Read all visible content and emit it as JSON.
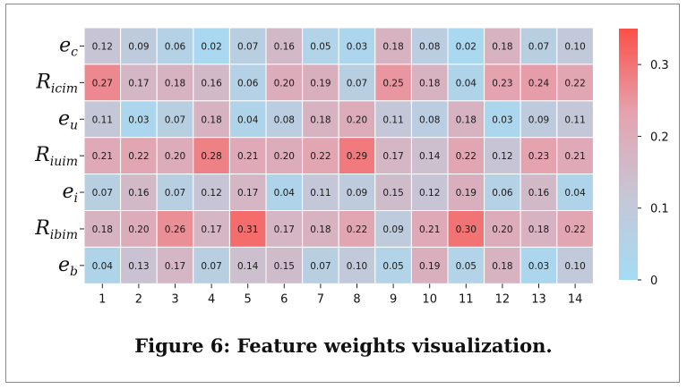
{
  "caption": "Figure 6: Feature weights visualization.",
  "chart_data": {
    "type": "heatmap",
    "title": "",
    "xlabel": "",
    "ylabel": "",
    "columns": [
      "1",
      "2",
      "3",
      "4",
      "5",
      "6",
      "7",
      "8",
      "9",
      "10",
      "11",
      "12",
      "13",
      "14"
    ],
    "rows": [
      {
        "main": "e",
        "sub": "c"
      },
      {
        "main": "R",
        "sub": "icim"
      },
      {
        "main": "e",
        "sub": "u"
      },
      {
        "main": "R",
        "sub": "iuim"
      },
      {
        "main": "e",
        "sub": "i"
      },
      {
        "main": "R",
        "sub": "ibim"
      },
      {
        "main": "e",
        "sub": "b"
      }
    ],
    "values": [
      [
        0.12,
        0.09,
        0.06,
        0.02,
        0.07,
        0.16,
        0.05,
        0.03,
        0.18,
        0.08,
        0.02,
        0.18,
        0.07,
        0.1
      ],
      [
        0.27,
        0.17,
        0.18,
        0.16,
        0.06,
        0.2,
        0.19,
        0.07,
        0.25,
        0.18,
        0.04,
        0.23,
        0.24,
        0.22
      ],
      [
        0.11,
        0.03,
        0.07,
        0.18,
        0.04,
        0.08,
        0.18,
        0.2,
        0.11,
        0.08,
        0.18,
        0.03,
        0.09,
        0.11
      ],
      [
        0.21,
        0.22,
        0.2,
        0.28,
        0.21,
        0.2,
        0.22,
        0.29,
        0.17,
        0.14,
        0.22,
        0.12,
        0.23,
        0.21
      ],
      [
        0.07,
        0.16,
        0.07,
        0.12,
        0.17,
        0.04,
        0.11,
        0.09,
        0.15,
        0.12,
        0.19,
        0.06,
        0.16,
        0.04
      ],
      [
        0.18,
        0.2,
        0.26,
        0.17,
        0.31,
        0.17,
        0.18,
        0.22,
        0.09,
        0.21,
        0.3,
        0.2,
        0.18,
        0.22
      ],
      [
        0.04,
        0.13,
        0.17,
        0.07,
        0.14,
        0.15,
        0.07,
        0.1,
        0.05,
        0.19,
        0.05,
        0.18,
        0.03,
        0.1
      ]
    ],
    "colorbar": {
      "range": [
        0,
        0.35
      ],
      "ticks": [
        0,
        0.1,
        0.2,
        0.3
      ],
      "tick_labels": [
        "0",
        "0.1",
        "0.2",
        "0.3"
      ],
      "colors": [
        "#a3dcf5",
        "#c6c6d6",
        "#e6a2af",
        "#fb5048"
      ]
    }
  }
}
